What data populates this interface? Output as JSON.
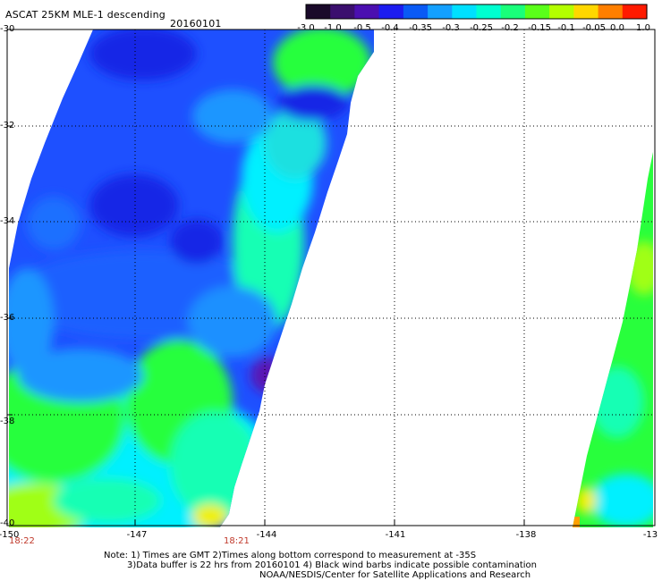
{
  "header": {
    "title": "ASCAT 25KM MLE-1 descending",
    "date": "20160101"
  },
  "colorbar": {
    "labels": [
      "-3.0",
      "-1.0",
      "-0.5",
      "-0.4",
      "-0.35",
      "-0.3",
      "-0.25",
      "-0.2",
      "-0.15",
      "-0.1",
      "-0.05",
      "0.0",
      "1.0"
    ],
    "colors": [
      "#1a0a2a",
      "#3b0f6e",
      "#4b0fb0",
      "#1c1cf0",
      "#0a5af5",
      "#14a0ff",
      "#00e0ff",
      "#00ffd0",
      "#19ff7a",
      "#5aff19",
      "#b4ff00",
      "#ffd700",
      "#ff7f00",
      "#ff1a00"
    ]
  },
  "map": {
    "lat_labels": [
      "-30",
      "-32",
      "-34",
      "-36",
      "-38",
      "-40"
    ],
    "lon_labels": [
      "-150",
      "-147",
      "-144",
      "-141",
      "-138",
      "-13"
    ],
    "colors": {
      "deep_blue": "#1428e6",
      "blue": "#1e50ff",
      "light_blue": "#1e96ff",
      "cyan": "#00f0ff",
      "teal": "#14ffb4",
      "green": "#28ff3c",
      "yellow_green": "#a0ff14",
      "yellow": "#f0f000",
      "orange": "#ffa000",
      "purple": "#5a14b4"
    }
  },
  "times": {
    "left": "18:22",
    "middle": "18:21"
  },
  "notes": {
    "line1": "Note: 1) Times are GMT 2)Times along bottom correspond to measurement at -35S",
    "line2": "3)Data buffer is 22 hrs from 20160101 4) Black wind barbs indicate possible contamination",
    "line3": "NOAA/NESDIS/Center for Satellite Applications and Research"
  }
}
